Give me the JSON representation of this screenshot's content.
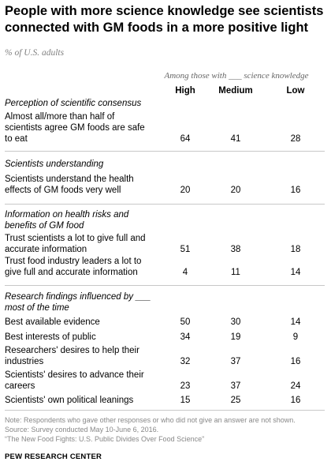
{
  "title": "People with more science knowledge see scientists connected with GM foods in a more positive light",
  "subtitle": "% of U.S. adults",
  "group_header": "Among those with ___ science knowledge",
  "columns": [
    "High",
    "Medium",
    "Low"
  ],
  "sections": [
    {
      "heading": "Perception of scientific consensus",
      "rows": [
        {
          "label": "Almost all/more than half of scientists agree GM foods are safe to eat",
          "values": [
            64,
            41,
            28
          ]
        }
      ]
    },
    {
      "heading": "Scientists understanding",
      "rows": [
        {
          "label": "Scientists understand the health effects of GM foods very well",
          "values": [
            20,
            20,
            16
          ]
        }
      ]
    },
    {
      "heading": "Information on health risks and benefits of GM food",
      "rows": [
        {
          "label": "Trust scientists a lot to give full and accurate information",
          "values": [
            51,
            38,
            18
          ]
        },
        {
          "label": "Trust food industry leaders a lot to give full and accurate information",
          "values": [
            4,
            11,
            14
          ]
        }
      ]
    },
    {
      "heading": "Research findings influenced by ___ most of the time",
      "rows": [
        {
          "label": "Best available evidence",
          "values": [
            50,
            30,
            14
          ]
        },
        {
          "label": "Best interests of public",
          "values": [
            34,
            19,
            9
          ]
        },
        {
          "label": "Researchers' desires to help their industries",
          "values": [
            32,
            37,
            16
          ]
        },
        {
          "label": "Scientists' desires to advance their careers",
          "values": [
            23,
            37,
            24
          ]
        },
        {
          "label": "Scientists' own political leanings",
          "values": [
            15,
            25,
            16
          ]
        }
      ]
    }
  ],
  "notes": [
    "Note: Respondents who gave other responses or who did not give an answer are not shown.",
    "Source: Survey conducted May 10-June 6, 2016.",
    "“The New Food Fights: U.S. Public Divides Over Food Science”"
  ],
  "brand": "PEW RESEARCH CENTER",
  "chart_data": {
    "type": "table",
    "title": "People with more science knowledge see scientists connected with GM foods in a more positive light",
    "subtitle": "% of U.S. adults",
    "columns": [
      "High",
      "Medium",
      "Low"
    ],
    "rows": [
      {
        "group": "Perception of scientific consensus",
        "label": "Almost all/more than half of scientists agree GM foods are safe to eat",
        "values": [
          64,
          41,
          28
        ]
      },
      {
        "group": "Scientists understanding",
        "label": "Scientists understand the health effects of GM foods very well",
        "values": [
          20,
          20,
          16
        ]
      },
      {
        "group": "Information on health risks and benefits of GM food",
        "label": "Trust scientists a lot to give full and accurate information",
        "values": [
          51,
          38,
          18
        ]
      },
      {
        "group": "Information on health risks and benefits of GM food",
        "label": "Trust food industry leaders a lot to give full and accurate information",
        "values": [
          4,
          11,
          14
        ]
      },
      {
        "group": "Research findings influenced by ___ most of the time",
        "label": "Best available evidence",
        "values": [
          50,
          30,
          14
        ]
      },
      {
        "group": "Research findings influenced by ___ most of the time",
        "label": "Best interests of public",
        "values": [
          34,
          19,
          9
        ]
      },
      {
        "group": "Research findings influenced by ___ most of the time",
        "label": "Researchers' desires to help their industries",
        "values": [
          32,
          37,
          16
        ]
      },
      {
        "group": "Research findings influenced by ___ most of the time",
        "label": "Scientists' desires to advance their careers",
        "values": [
          23,
          37,
          24
        ]
      },
      {
        "group": "Research findings influenced by ___ most of the time",
        "label": "Scientists' own political leanings",
        "values": [
          15,
          25,
          16
        ]
      }
    ]
  }
}
